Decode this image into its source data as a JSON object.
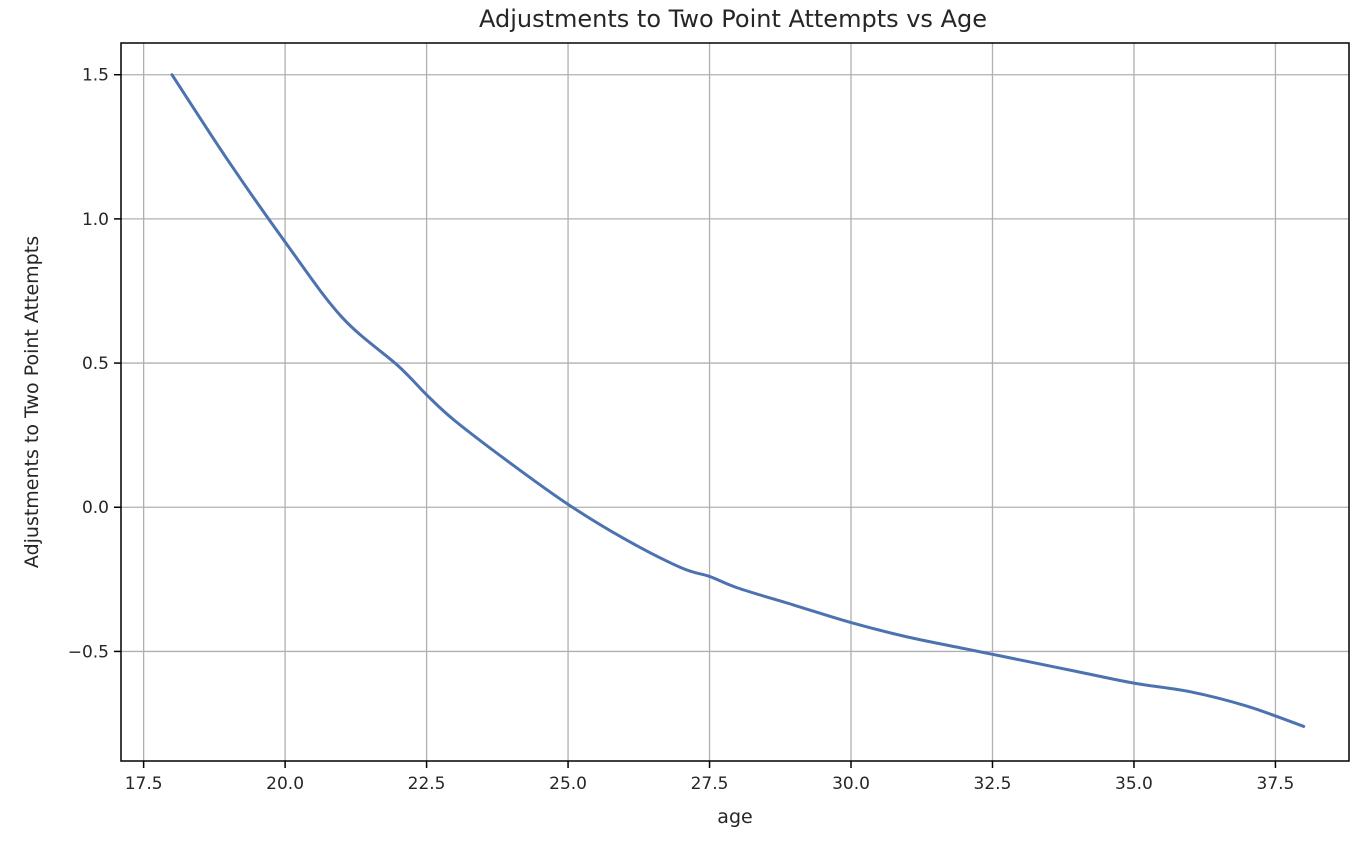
{
  "chart_data": {
    "type": "line",
    "title": "Adjustments to Two Point Attempts vs Age",
    "xlabel": "age",
    "ylabel": "Adjustments to Two Point Attempts",
    "xlim": [
      17.1,
      38.8
    ],
    "ylim": [
      -0.88,
      1.61
    ],
    "grid": true,
    "x_ticks": [
      17.5,
      20.0,
      22.5,
      25.0,
      27.5,
      30.0,
      32.5,
      35.0,
      37.5
    ],
    "x_tick_labels": [
      "17.5",
      "20.0",
      "22.5",
      "25.0",
      "27.5",
      "30.0",
      "32.5",
      "35.0",
      "37.5"
    ],
    "y_ticks": [
      -0.5,
      0.0,
      0.5,
      1.0,
      1.5
    ],
    "y_tick_labels": [
      "−0.5",
      "0.0",
      "0.5",
      "1.0",
      "1.5"
    ],
    "series": [
      {
        "color": "#4c72b0",
        "x": [
          18.0,
          19.0,
          20.0,
          21.0,
          22.0,
          22.5,
          23.0,
          24.0,
          25.0,
          26.0,
          27.0,
          27.5,
          28.0,
          29.0,
          30.0,
          31.0,
          32.0,
          32.5,
          33.0,
          34.0,
          35.0,
          36.0,
          37.0,
          38.0
        ],
        "y": [
          1.5,
          1.2,
          0.92,
          0.66,
          0.49,
          0.39,
          0.3,
          0.15,
          0.01,
          -0.11,
          -0.21,
          -0.24,
          -0.28,
          -0.34,
          -0.4,
          -0.45,
          -0.49,
          -0.51,
          -0.53,
          -0.57,
          -0.61,
          -0.64,
          -0.69,
          -0.76
        ]
      }
    ]
  }
}
